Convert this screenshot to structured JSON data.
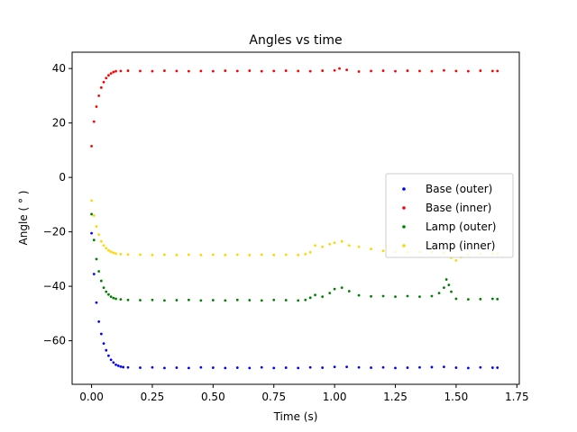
{
  "chart_data": {
    "type": "scatter",
    "title": "Angles vs time",
    "xlabel": "Time (s)",
    "ylabel": "Angle ( ° )",
    "xlim": [
      -0.08,
      1.76
    ],
    "ylim": [
      -76,
      46
    ],
    "xticks": [
      0.0,
      0.25,
      0.5,
      0.75,
      1.0,
      1.25,
      1.5,
      1.75
    ],
    "xtick_labels": [
      "0.00",
      "0.25",
      "0.50",
      "0.75",
      "1.00",
      "1.25",
      "1.50",
      "1.75"
    ],
    "yticks": [
      -60,
      -40,
      -20,
      0,
      20,
      40
    ],
    "ytick_labels": [
      "−60",
      "−40",
      "−20",
      "0",
      "20",
      "40"
    ],
    "grid": false,
    "legend_position": "center-right",
    "series": [
      {
        "name": "Base (outer)",
        "color": "#0000ff",
        "points": [
          [
            0.0,
            -20.5
          ],
          [
            0.01,
            -35.5
          ],
          [
            0.02,
            -46
          ],
          [
            0.03,
            -53
          ],
          [
            0.04,
            -57.5
          ],
          [
            0.05,
            -61
          ],
          [
            0.06,
            -63.5
          ],
          [
            0.07,
            -65.5
          ],
          [
            0.08,
            -67
          ],
          [
            0.09,
            -68
          ],
          [
            0.1,
            -68.8
          ],
          [
            0.11,
            -69.2
          ],
          [
            0.12,
            -69.5
          ],
          [
            0.13,
            -69.7
          ],
          [
            0.15,
            -69.8
          ],
          [
            0.2,
            -69.9
          ],
          [
            0.25,
            -69.8
          ],
          [
            0.3,
            -70
          ],
          [
            0.35,
            -69.9
          ],
          [
            0.4,
            -70
          ],
          [
            0.45,
            -69.8
          ],
          [
            0.5,
            -69.9
          ],
          [
            0.55,
            -70
          ],
          [
            0.6,
            -69.9
          ],
          [
            0.65,
            -70
          ],
          [
            0.7,
            -69.8
          ],
          [
            0.75,
            -70
          ],
          [
            0.8,
            -69.9
          ],
          [
            0.85,
            -70
          ],
          [
            0.9,
            -69.8
          ],
          [
            0.95,
            -69.9
          ],
          [
            1.0,
            -69.6
          ],
          [
            1.05,
            -69.6
          ],
          [
            1.1,
            -69.8
          ],
          [
            1.15,
            -69.9
          ],
          [
            1.2,
            -69.8
          ],
          [
            1.25,
            -70
          ],
          [
            1.3,
            -69.9
          ],
          [
            1.35,
            -69.8
          ],
          [
            1.4,
            -69.7
          ],
          [
            1.45,
            -69.6
          ],
          [
            1.5,
            -69.9
          ],
          [
            1.55,
            -70
          ],
          [
            1.6,
            -69.8
          ],
          [
            1.65,
            -69.9
          ],
          [
            1.67,
            -69.9
          ]
        ]
      },
      {
        "name": "Base (inner)",
        "color": "#ff0000",
        "points": [
          [
            0.0,
            11.5
          ],
          [
            0.01,
            20.5
          ],
          [
            0.02,
            26
          ],
          [
            0.03,
            30
          ],
          [
            0.04,
            33
          ],
          [
            0.05,
            35
          ],
          [
            0.06,
            36.5
          ],
          [
            0.07,
            37.5
          ],
          [
            0.08,
            38.2
          ],
          [
            0.09,
            38.7
          ],
          [
            0.1,
            39
          ],
          [
            0.12,
            39.1
          ],
          [
            0.15,
            39.2
          ],
          [
            0.2,
            39.1
          ],
          [
            0.25,
            39
          ],
          [
            0.3,
            39.2
          ],
          [
            0.35,
            39.1
          ],
          [
            0.4,
            39
          ],
          [
            0.45,
            39.1
          ],
          [
            0.5,
            39
          ],
          [
            0.55,
            39.2
          ],
          [
            0.6,
            39.1
          ],
          [
            0.65,
            39.2
          ],
          [
            0.7,
            39
          ],
          [
            0.75,
            39.1
          ],
          [
            0.8,
            39.2
          ],
          [
            0.85,
            39.1
          ],
          [
            0.9,
            39
          ],
          [
            0.95,
            39.2
          ],
          [
            1.0,
            39.3
          ],
          [
            1.02,
            40
          ],
          [
            1.05,
            39.5
          ],
          [
            1.1,
            38.9
          ],
          [
            1.15,
            39.1
          ],
          [
            1.2,
            39.2
          ],
          [
            1.25,
            39
          ],
          [
            1.3,
            39.2
          ],
          [
            1.35,
            39.1
          ],
          [
            1.4,
            39
          ],
          [
            1.45,
            39.3
          ],
          [
            1.5,
            39.1
          ],
          [
            1.55,
            39
          ],
          [
            1.6,
            39.2
          ],
          [
            1.65,
            39.1
          ],
          [
            1.67,
            39.1
          ]
        ]
      },
      {
        "name": "Lamp (outer)",
        "color": "#008000",
        "points": [
          [
            0.0,
            -13.5
          ],
          [
            0.01,
            -23
          ],
          [
            0.02,
            -30
          ],
          [
            0.03,
            -34.5
          ],
          [
            0.04,
            -38
          ],
          [
            0.05,
            -40.5
          ],
          [
            0.06,
            -42
          ],
          [
            0.07,
            -43
          ],
          [
            0.08,
            -43.8
          ],
          [
            0.09,
            -44.3
          ],
          [
            0.1,
            -44.6
          ],
          [
            0.12,
            -44.8
          ],
          [
            0.15,
            -45
          ],
          [
            0.2,
            -45.1
          ],
          [
            0.25,
            -45
          ],
          [
            0.3,
            -45.2
          ],
          [
            0.35,
            -45.1
          ],
          [
            0.4,
            -45
          ],
          [
            0.45,
            -45.2
          ],
          [
            0.5,
            -45.1
          ],
          [
            0.55,
            -45.2
          ],
          [
            0.6,
            -45
          ],
          [
            0.65,
            -45.1
          ],
          [
            0.7,
            -45.2
          ],
          [
            0.75,
            -45
          ],
          [
            0.8,
            -45.1
          ],
          [
            0.85,
            -45.2
          ],
          [
            0.88,
            -45
          ],
          [
            0.9,
            -44.2
          ],
          [
            0.92,
            -43.2
          ],
          [
            0.95,
            -43.8
          ],
          [
            0.98,
            -42.5
          ],
          [
            1.0,
            -41
          ],
          [
            1.03,
            -40.5
          ],
          [
            1.06,
            -41.8
          ],
          [
            1.1,
            -43.3
          ],
          [
            1.15,
            -43.7
          ],
          [
            1.2,
            -43.6
          ],
          [
            1.25,
            -43.8
          ],
          [
            1.3,
            -43.6
          ],
          [
            1.35,
            -43.8
          ],
          [
            1.4,
            -43.6
          ],
          [
            1.43,
            -42.5
          ],
          [
            1.45,
            -40.5
          ],
          [
            1.46,
            -37.5
          ],
          [
            1.47,
            -39.5
          ],
          [
            1.48,
            -42
          ],
          [
            1.5,
            -44.6
          ],
          [
            1.55,
            -44.8
          ],
          [
            1.6,
            -44.7
          ],
          [
            1.65,
            -44.6
          ],
          [
            1.67,
            -44.7
          ]
        ]
      },
      {
        "name": "Lamp (inner)",
        "color": "#ffd700",
        "points": [
          [
            0.0,
            -8.5
          ],
          [
            0.01,
            -14
          ],
          [
            0.02,
            -18
          ],
          [
            0.03,
            -21
          ],
          [
            0.04,
            -23.5
          ],
          [
            0.05,
            -25
          ],
          [
            0.06,
            -26
          ],
          [
            0.07,
            -26.8
          ],
          [
            0.08,
            -27.3
          ],
          [
            0.09,
            -27.7
          ],
          [
            0.1,
            -28
          ],
          [
            0.12,
            -28.2
          ],
          [
            0.15,
            -28.3
          ],
          [
            0.2,
            -28.4
          ],
          [
            0.25,
            -28.5
          ],
          [
            0.3,
            -28.4
          ],
          [
            0.35,
            -28.5
          ],
          [
            0.4,
            -28.4
          ],
          [
            0.45,
            -28.5
          ],
          [
            0.5,
            -28.4
          ],
          [
            0.55,
            -28.5
          ],
          [
            0.6,
            -28.4
          ],
          [
            0.65,
            -28.5
          ],
          [
            0.7,
            -28.4
          ],
          [
            0.75,
            -28.5
          ],
          [
            0.8,
            -28.4
          ],
          [
            0.85,
            -28.5
          ],
          [
            0.88,
            -28.2
          ],
          [
            0.9,
            -27.5
          ],
          [
            0.92,
            -25
          ],
          [
            0.95,
            -25.5
          ],
          [
            0.98,
            -24.5
          ],
          [
            1.0,
            -24
          ],
          [
            1.03,
            -23.5
          ],
          [
            1.06,
            -25
          ],
          [
            1.1,
            -25.5
          ],
          [
            1.15,
            -26.3
          ],
          [
            1.2,
            -27
          ],
          [
            1.25,
            -27.3
          ],
          [
            1.3,
            -27.5
          ],
          [
            1.35,
            -27.4
          ],
          [
            1.4,
            -27.5
          ],
          [
            1.45,
            -27.8
          ],
          [
            1.48,
            -29.5
          ],
          [
            1.5,
            -30.5
          ],
          [
            1.52,
            -29.3
          ],
          [
            1.55,
            -28.3
          ],
          [
            1.6,
            -28.1
          ],
          [
            1.65,
            -28
          ],
          [
            1.67,
            -28
          ]
        ]
      }
    ]
  }
}
